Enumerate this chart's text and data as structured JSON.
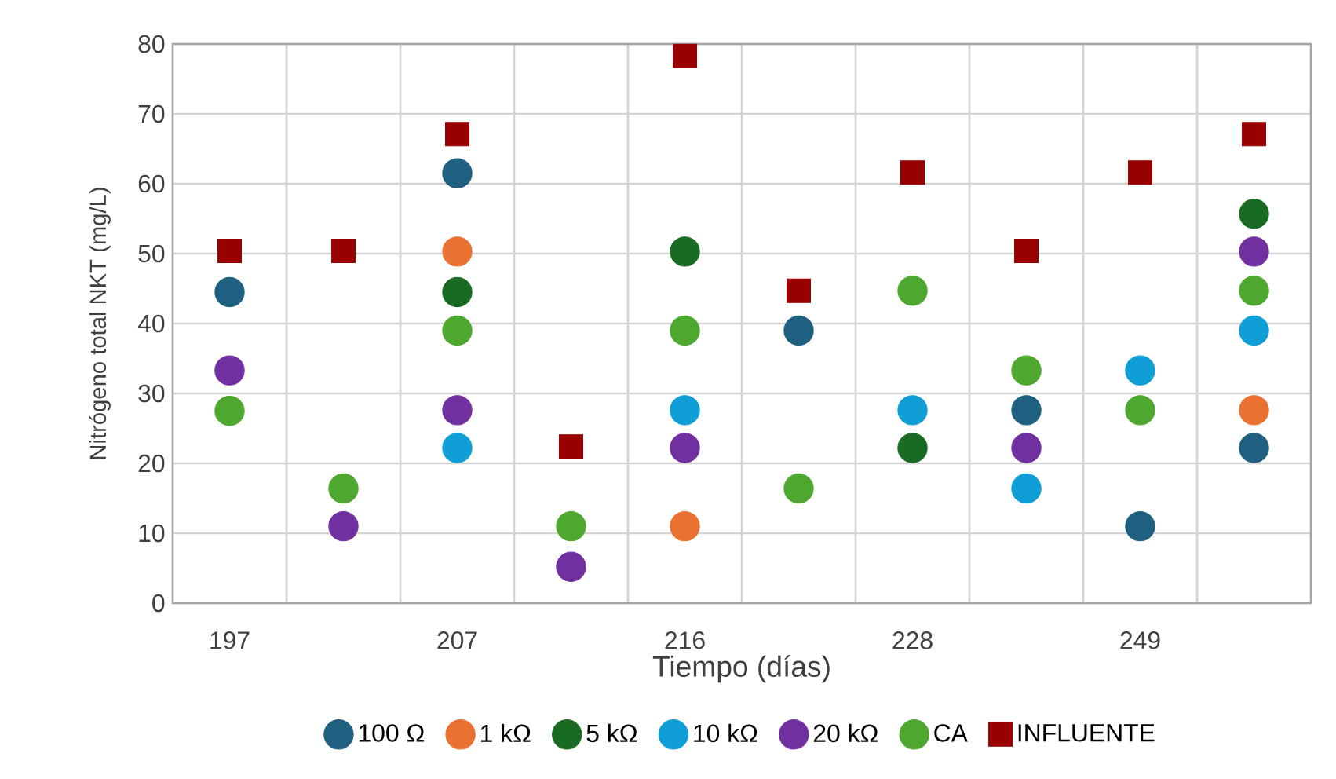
{
  "chart_data": {
    "type": "scatter",
    "xlabel": "Tiempo (días)",
    "ylabel": "Nitrógeno total NKT (mg/L)",
    "categories": [
      "197",
      null,
      "207",
      null,
      "216",
      null,
      "228",
      null,
      "249",
      null
    ],
    "ylim": [
      0,
      80
    ],
    "yticks": [
      0,
      10,
      20,
      30,
      40,
      50,
      60,
      70,
      80
    ],
    "grid": true,
    "legend": "bottom",
    "marker": "circle",
    "series": [
      {
        "name": "100 Ω",
        "color": "#1f5f80",
        "values": [
          44.5,
          null,
          61.5,
          null,
          null,
          39,
          null,
          27.6,
          11,
          22.2
        ]
      },
      {
        "name": "1 kΩ",
        "color": "#e97132",
        "values": [
          null,
          null,
          50.3,
          null,
          11,
          null,
          null,
          null,
          null,
          27.6
        ]
      },
      {
        "name": "5 kΩ",
        "color": "#196b24",
        "values": [
          null,
          null,
          44.5,
          null,
          50.3,
          null,
          22.2,
          null,
          null,
          55.7
        ]
      },
      {
        "name": "10 kΩ",
        "color": "#0f9ed5",
        "values": [
          null,
          null,
          22.2,
          null,
          27.6,
          null,
          27.6,
          16.4,
          33.3,
          39
        ]
      },
      {
        "name": "20 kΩ",
        "color": "#7030a0",
        "values": [
          33.3,
          11,
          27.6,
          5.2,
          22.2,
          null,
          null,
          22.2,
          null,
          50.3
        ]
      },
      {
        "name": "CA",
        "color": "#4ea72e",
        "values": [
          27.5,
          16.4,
          39,
          11,
          39,
          16.4,
          44.7,
          33.3,
          27.6,
          44.7
        ]
      },
      {
        "name": "INFLUENTE",
        "color": "#990000",
        "marker": "square",
        "values": [
          50.4,
          50.4,
          67.1,
          22.4,
          78.3,
          44.7,
          61.6,
          50.4,
          61.6,
          67.1
        ]
      }
    ]
  }
}
